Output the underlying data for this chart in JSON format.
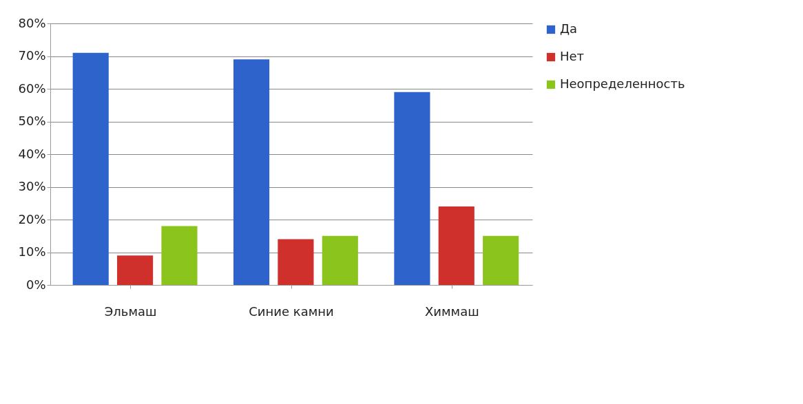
{
  "chart_data": {
    "type": "bar",
    "categories": [
      "Эльмаш",
      "Синие камни",
      "Химмаш"
    ],
    "series": [
      {
        "name": "Да",
        "color": "#2f63cc",
        "values": [
          71,
          69,
          59
        ]
      },
      {
        "name": "Нет",
        "color": "#d0302c",
        "values": [
          9,
          14,
          24
        ]
      },
      {
        "name": "Неопределенность",
        "color": "#8cc41e",
        "values": [
          18,
          15,
          15
        ]
      }
    ],
    "ylim": [
      0,
      80
    ],
    "yticks": [
      {
        "value": 0,
        "label": "0%"
      },
      {
        "value": 10,
        "label": "10%"
      },
      {
        "value": 20,
        "label": "20%"
      },
      {
        "value": 30,
        "label": "30%"
      },
      {
        "value": 40,
        "label": "40%"
      },
      {
        "value": 50,
        "label": "50%"
      },
      {
        "value": 60,
        "label": "60%"
      },
      {
        "value": 70,
        "label": "70%"
      },
      {
        "value": 80,
        "label": "80%"
      }
    ],
    "grid": "y",
    "legend": "right"
  }
}
